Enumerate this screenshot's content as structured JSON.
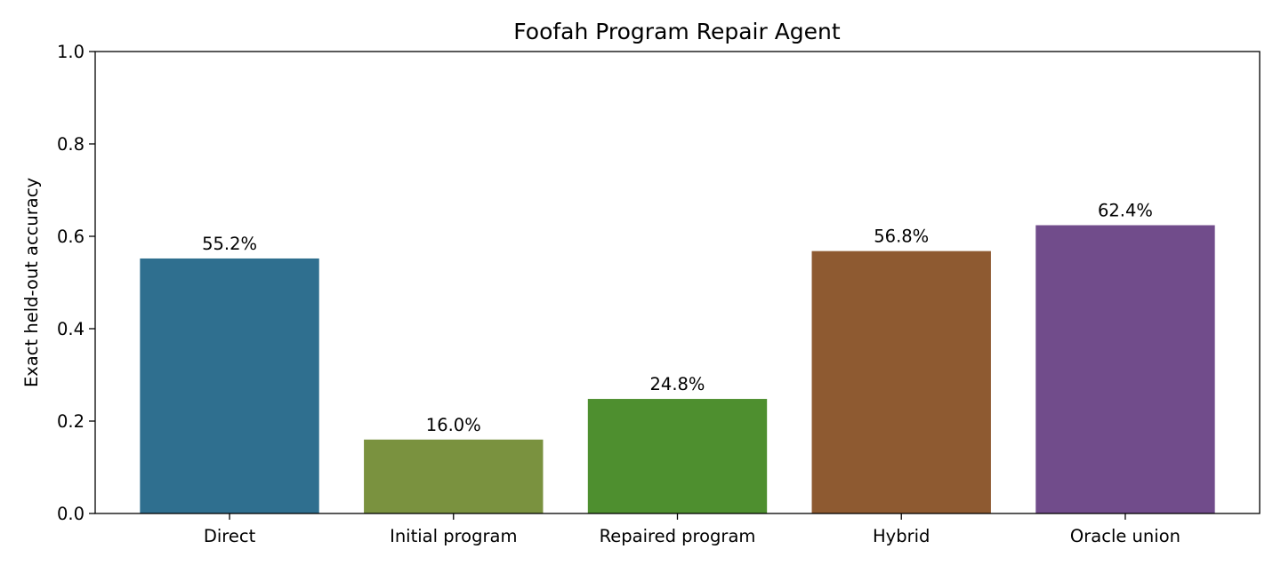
{
  "chart_data": {
    "type": "bar",
    "title": "Foofah Program Repair Agent",
    "xlabel": "",
    "ylabel": "Exact held-out accuracy",
    "categories": [
      "Direct",
      "Initial program",
      "Repaired program",
      "Hybrid",
      "Oracle union"
    ],
    "values": [
      0.552,
      0.16,
      0.248,
      0.568,
      0.624
    ],
    "value_labels": [
      "55.2%",
      "16.0%",
      "24.8%",
      "56.8%",
      "62.4%"
    ],
    "colors": [
      "#2f6f8f",
      "#7a923f",
      "#4e8f2f",
      "#8e5a31",
      "#714c8b"
    ],
    "ylim": [
      0,
      1.0
    ],
    "yticks": [
      0.0,
      0.2,
      0.4,
      0.6,
      0.8,
      1.0
    ],
    "ytick_labels": [
      "0.0",
      "0.2",
      "0.4",
      "0.6",
      "0.8",
      "1.0"
    ],
    "grid": false,
    "legend": "none"
  }
}
